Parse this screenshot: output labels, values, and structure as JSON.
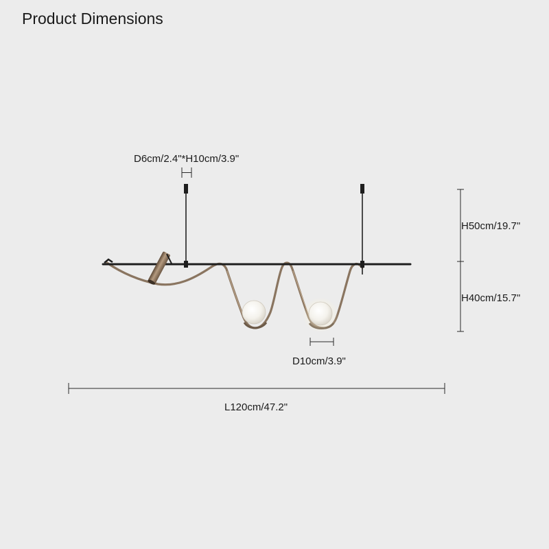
{
  "title": "Product Dimensions",
  "dimensions": {
    "spotlight": "D6cm/2.4\"*H10cm/3.9\"",
    "suspension_height": "H50cm/19.7\"",
    "drop_height": "H40cm/15.7\"",
    "globe_diameter": "D10cm/3.9\"",
    "length": "L120cm/47.2\""
  },
  "colors": {
    "background": "#ececec",
    "rod": "#1e1e1e",
    "brass": "#8a7560",
    "globe": "#f7f6f2"
  }
}
